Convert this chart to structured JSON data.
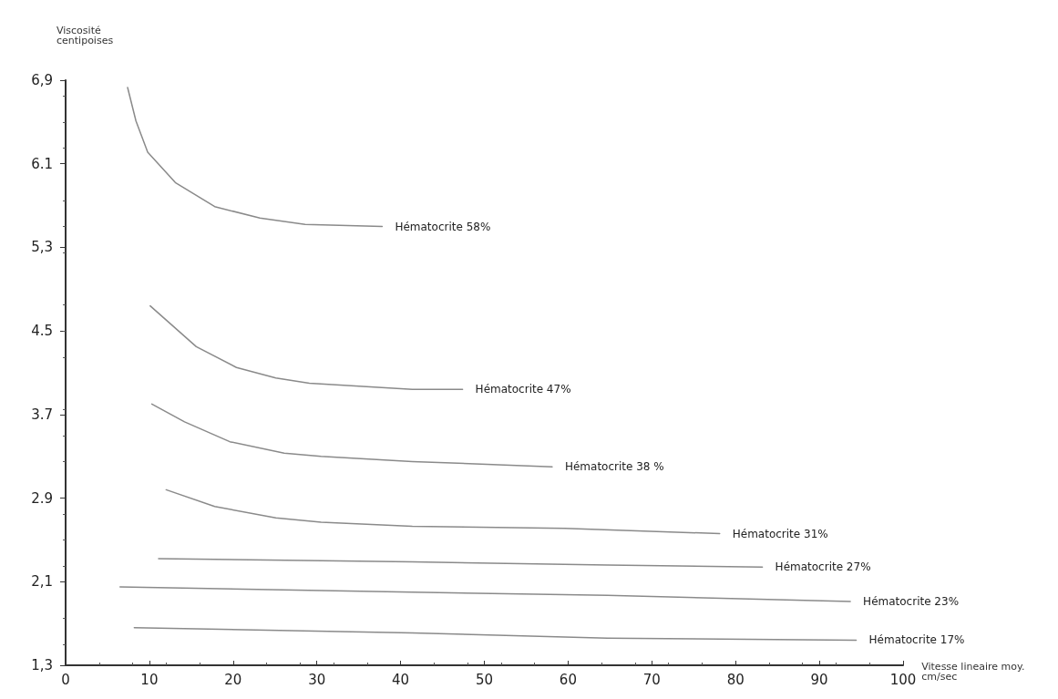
{
  "chart_data": {
    "type": "line",
    "xlabel": "Vitesse lineaire moy.\ncm/sec",
    "ylabel": "Viscosité\ncentipoises",
    "xlim": [
      0,
      100
    ],
    "xticks": [
      0,
      10,
      20,
      30,
      40,
      50,
      60,
      70,
      80,
      90,
      100
    ],
    "ylim": [
      1.3,
      6.9
    ],
    "yticks": [
      {
        "value": 1.3,
        "label": "1,3"
      },
      {
        "value": 2.1,
        "label": "2,1"
      },
      2.9,
      3.7,
      4.5,
      {
        "value": 5.3,
        "label": "5,3"
      },
      6.1,
      {
        "value": 6.9,
        "label": "6,9"
      }
    ],
    "grid": false,
    "legend": false,
    "marker": "none",
    "line_style": "solid",
    "series": [
      {
        "name": "Hématocrite 58%",
        "color": "#8a8a8a",
        "x": [
          7.4,
          8.4,
          9.8,
          13.1,
          17.8,
          23.2,
          28.6,
          37.8
        ],
        "values": [
          6.83,
          6.51,
          6.21,
          5.92,
          5.69,
          5.58,
          5.52,
          5.5
        ]
      },
      {
        "name": "Hématocrite 47%",
        "color": "#8a8a8a",
        "x": [
          10.1,
          15.6,
          20.4,
          25.1,
          29.1,
          41.4,
          47.4
        ],
        "values": [
          4.74,
          4.35,
          4.15,
          4.05,
          4.0,
          3.94,
          3.94
        ]
      },
      {
        "name": "Hématocrite 38 %",
        "color": "#8a8a8a",
        "x": [
          10.3,
          14.2,
          19.6,
          26.1,
          30.5,
          41.4,
          58.1
        ],
        "values": [
          3.8,
          3.63,
          3.44,
          3.33,
          3.3,
          3.25,
          3.2
        ]
      },
      {
        "name": "Hématocrite 31%",
        "color": "#8a8a8a",
        "x": [
          12.0,
          17.8,
          25.1,
          30.5,
          41.4,
          59.6,
          78.1
        ],
        "values": [
          2.98,
          2.82,
          2.71,
          2.67,
          2.63,
          2.61,
          2.56
        ]
      },
      {
        "name": "Hématocrite 27%",
        "color": "#8a8a8a",
        "x": [
          11.1,
          41.4,
          64.7,
          83.2
        ],
        "values": [
          2.32,
          2.29,
          2.26,
          2.24
        ]
      },
      {
        "name": "Hématocrite 23%",
        "color": "#8a8a8a",
        "x": [
          6.5,
          41.4,
          64.7,
          93.7
        ],
        "values": [
          2.05,
          2.0,
          1.97,
          1.91
        ]
      },
      {
        "name": "Hématocrite 17%",
        "color": "#8a8a8a",
        "x": [
          8.2,
          41.4,
          64.7,
          94.4
        ],
        "values": [
          1.66,
          1.61,
          1.56,
          1.54
        ]
      }
    ]
  }
}
